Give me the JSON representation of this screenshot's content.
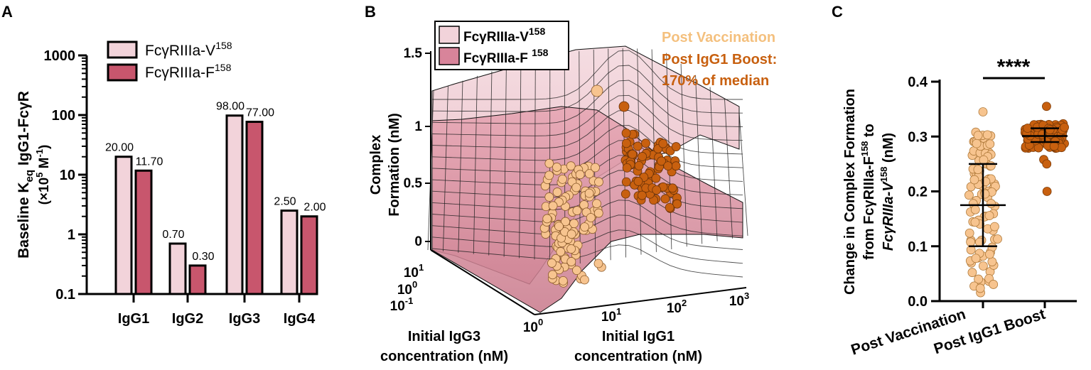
{
  "colors": {
    "v158": "#f2d3da",
    "f158": "#c8566d",
    "post_vaccination": "#f7c48f",
    "post_boost": "#c8600f",
    "post_vaccination_text": "#f4c07e",
    "post_boost_text": "#c8600f"
  },
  "chart_data": [
    {
      "panel": "A",
      "type": "bar",
      "ylabel_main": "Baseline K",
      "ylabel_sub": "eq",
      "ylabel_tail": " IgG1-FcγR",
      "ylabel_unit_pre": "(×10",
      "ylabel_unit_exp": "5",
      "ylabel_unit_mid": " M",
      "ylabel_unit_exp2": "-1",
      "ylabel_unit_post": ")",
      "yscale": "log",
      "ylim": [
        0.1,
        1000
      ],
      "yticks": [
        "0.1",
        "1",
        "10",
        "100",
        "1000"
      ],
      "categories": [
        "IgG1",
        "IgG2",
        "IgG3",
        "IgG4"
      ],
      "series": [
        {
          "name": "FcγRIIIa-V",
          "sup": "158",
          "values": [
            20.0,
            0.7,
            98.0,
            2.5
          ],
          "labels": [
            "20.00",
            "0.70",
            "98.00",
            "2.50"
          ]
        },
        {
          "name": "FcγRIIIa-F",
          "sup": "158",
          "values": [
            11.7,
            0.3,
            77.0,
            2.0
          ],
          "labels": [
            "11.70",
            "0.30",
            "77.00",
            "2.00"
          ]
        }
      ]
    },
    {
      "panel": "B",
      "type": "surface3d",
      "zlabel_line1": "Complex",
      "zlabel_line2": "Formation (nM)",
      "zticks": [
        "0",
        "0.5",
        "1",
        "1.5"
      ],
      "xlabel_line1": "Initial IgG1",
      "xlabel_line2": "concentration (nM)",
      "xticks_base": [
        "10",
        "10",
        "10",
        "10"
      ],
      "xticks_exp": [
        "0",
        "1",
        "2",
        "3"
      ],
      "ylabel_line1": "Initial IgG3",
      "ylabel_line2": "concentration (nM)",
      "yticks_base": [
        "10",
        "10",
        "10"
      ],
      "yticks_exp": [
        "1",
        "0",
        "-1"
      ],
      "legend": [
        {
          "name": "FcγRIIIa-V",
          "sup": "158"
        },
        {
          "name": "FcγRIIIa-F ",
          "sup": "158"
        }
      ],
      "annotations": {
        "post_vaccination": "Post Vaccination",
        "post_boost_line1": "Post IgG1 Boost:",
        "post_boost_line2": "170% of median"
      }
    },
    {
      "panel": "C",
      "type": "scatter",
      "ylabel_line1": "Change in Complex Formation",
      "ylabel_line2_pre": "from FcγRIIIa-F",
      "ylabel_line2_sup": "158",
      "ylabel_line2_post": " to",
      "ylabel_line3_pre": "FcγRIIIa-V",
      "ylabel_line3_sup": "158",
      "ylabel_line3_post": " (nM)",
      "ylim": [
        0.0,
        0.4
      ],
      "yticks": [
        "0.0",
        "0.1",
        "0.2",
        "0.3",
        "0.4"
      ],
      "categories": [
        "Post Vaccination",
        "Post IgG1 Boost"
      ],
      "significance": "****",
      "groups": [
        {
          "name": "Post Vaccination",
          "mean": 0.175,
          "sd_low": 0.1,
          "sd_high": 0.25,
          "min": 0.01,
          "max": 0.345
        },
        {
          "name": "Post IgG1 Boost",
          "mean": 0.301,
          "sd_low": 0.29,
          "sd_high": 0.315,
          "min": 0.2,
          "max": 0.355
        }
      ]
    }
  ],
  "panel_labels": {
    "a": "A",
    "b": "B",
    "c": "C"
  }
}
